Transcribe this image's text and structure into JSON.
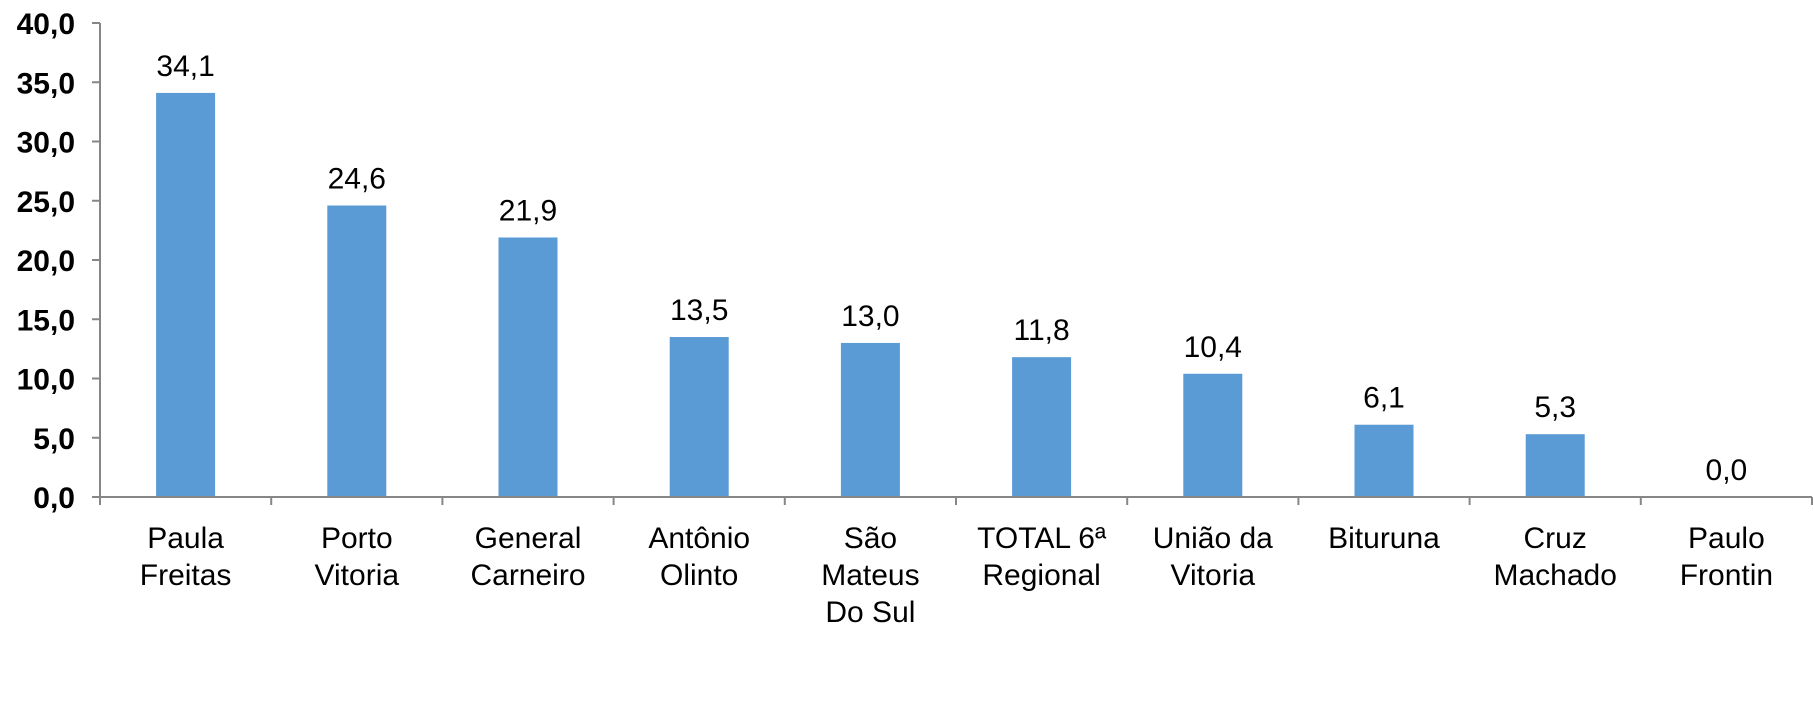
{
  "chart_data": {
    "type": "bar",
    "title": "",
    "xlabel": "",
    "ylabel": "",
    "categories": [
      [
        "Paula",
        "Freitas"
      ],
      [
        "Porto",
        "Vitoria"
      ],
      [
        "General",
        "Carneiro"
      ],
      [
        "Antônio",
        "Olinto"
      ],
      [
        "São",
        "Mateus",
        "Do Sul"
      ],
      [
        "TOTAL 6ª",
        "Regional"
      ],
      [
        "União da",
        "Vitoria"
      ],
      [
        "Bituruna"
      ],
      [
        "Cruz",
        "Machado"
      ],
      [
        "Paulo",
        "Frontin"
      ]
    ],
    "values": [
      34.1,
      24.6,
      21.9,
      13.5,
      13.0,
      11.8,
      10.4,
      6.1,
      5.3,
      0.0
    ],
    "value_labels": [
      "34,1",
      "24,6",
      "21,9",
      "13,5",
      "13,0",
      "11,8",
      "10,4",
      "6,1",
      "5,3",
      "0,0"
    ],
    "ylim": [
      0,
      40
    ],
    "yticks": [
      0,
      5,
      10,
      15,
      20,
      25,
      30,
      35,
      40
    ],
    "ytick_labels": [
      "0,0",
      "5,0",
      "10,0",
      "15,0",
      "20,0",
      "25,0",
      "30,0",
      "35,0",
      "40,0"
    ],
    "grid": false,
    "legend": "none",
    "colors": {
      "bar": "#5B9BD5",
      "axis": "#868686",
      "text": "#000000"
    }
  }
}
